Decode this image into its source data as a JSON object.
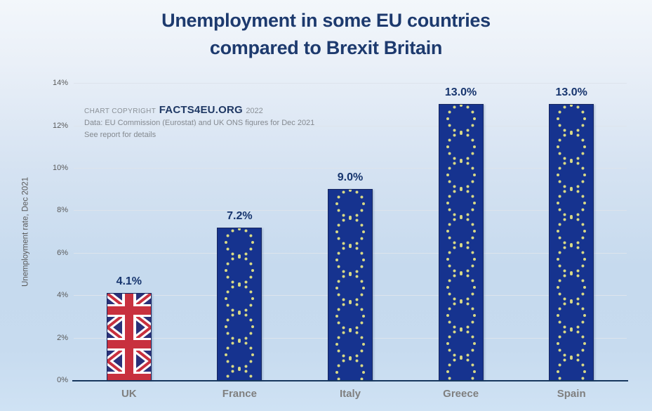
{
  "title": {
    "line1": "Unemployment in some EU countries",
    "line2": "compared to Brexit Britain"
  },
  "copyright": {
    "prefix": "CHART COPYRIGHT",
    "brand": "FACTS4EU.ORG",
    "year": "2022",
    "source_line": "Data: EU Commission (Eurostat) and UK ONS figures for Dec 2021",
    "note_line": "See report for details"
  },
  "chart_data": {
    "type": "bar",
    "title": "Unemployment in some EU countries compared to Brexit Britain",
    "categories": [
      "UK",
      "France",
      "Italy",
      "Greece",
      "Spain"
    ],
    "values": [
      4.1,
      7.2,
      9.0,
      13.0,
      13.0
    ],
    "value_labels": [
      "4.1%",
      "7.2%",
      "9.0%",
      "13.0%",
      "13.0%"
    ],
    "bar_styles": [
      "uk-flag",
      "eu-flag",
      "eu-flag",
      "eu-flag",
      "eu-flag"
    ],
    "xlabel": "",
    "ylabel": "Unemployment rate, Dec 2021",
    "ylim": [
      0,
      14
    ],
    "yticks": [
      0,
      2,
      4,
      6,
      8,
      10,
      12,
      14
    ],
    "ytick_labels": [
      "0%",
      "2%",
      "4%",
      "6%",
      "8%",
      "10%",
      "12%",
      "14%"
    ],
    "grid": true,
    "legend": false
  },
  "colors": {
    "title_text": "#1d3a6e",
    "value_label_text": "#17356e",
    "category_label_text": "#7f7f7f",
    "axis_line": "#17375e",
    "gridline": "#dde4ec",
    "eu_flag_blue": "#16338f",
    "eu_flag_star": "#d8d985",
    "uk_flag_navy": "#2a3079",
    "uk_flag_red": "#c8303e",
    "uk_flag_white": "#ffffff"
  }
}
